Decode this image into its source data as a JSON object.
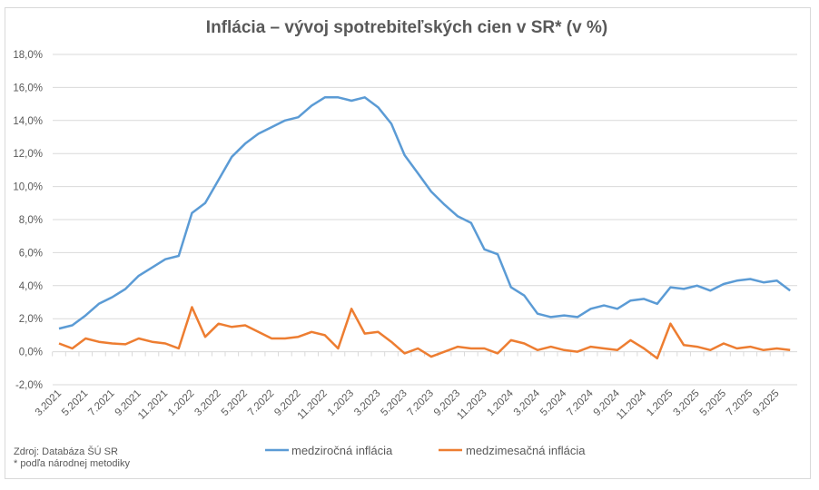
{
  "chart_data": {
    "type": "line",
    "title": "Inflácia –  vývoj spotrebiteľských cien v SR* (v %)",
    "xlabel": "",
    "ylabel": "",
    "ylim": [
      -2,
      18
    ],
    "yticks": [
      "-2,0%",
      "0,0%",
      "2,0%",
      "4,0%",
      "6,0%",
      "8,0%",
      "10,0%",
      "12,0%",
      "14,0%",
      "16,0%",
      "18,0%"
    ],
    "grid": true,
    "legend": "bottom",
    "xtick_labels": [
      "3.2021",
      "5.2021",
      "7.2021",
      "9.2021",
      "11.2021",
      "1.2022",
      "3.2022",
      "5.2022",
      "7.2022",
      "9.2022",
      "11.2022",
      "1.2023",
      "3.2023",
      "5.2023",
      "7.2023",
      "9.2023",
      "11.2023",
      "1.2024",
      "3.2024",
      "5.2024",
      "7.2024",
      "9.2024",
      "11.2024",
      "1.2025",
      "3.2025",
      "5.2025",
      "7.2025",
      "9.2025"
    ],
    "x": [
      "3.2021",
      "4.2021",
      "5.2021",
      "6.2021",
      "7.2021",
      "8.2021",
      "9.2021",
      "10.2021",
      "11.2021",
      "12.2021",
      "1.2022",
      "2.2022",
      "3.2022",
      "4.2022",
      "5.2022",
      "6.2022",
      "7.2022",
      "8.2022",
      "9.2022",
      "10.2022",
      "11.2022",
      "12.2022",
      "1.2023",
      "2.2023",
      "3.2023",
      "4.2023",
      "5.2023",
      "6.2023",
      "7.2023",
      "8.2023",
      "9.2023",
      "10.2023",
      "11.2023",
      "12.2023",
      "1.2024",
      "2.2024",
      "3.2024",
      "4.2024",
      "5.2024",
      "6.2024",
      "7.2024",
      "8.2024",
      "9.2024",
      "10.2024",
      "11.2024",
      "12.2024",
      "1.2025",
      "2.2025",
      "3.2025",
      "4.2025",
      "5.2025",
      "6.2025",
      "7.2025",
      "8.2025",
      "9.2025",
      "10.2025"
    ],
    "series": [
      {
        "name": "medziročná inflácia",
        "color": "#5b9bd5",
        "values": [
          1.4,
          1.6,
          2.2,
          2.9,
          3.3,
          3.8,
          4.6,
          5.1,
          5.6,
          5.8,
          8.4,
          9.0,
          10.4,
          11.8,
          12.6,
          13.2,
          13.6,
          14.0,
          14.2,
          14.9,
          15.4,
          15.4,
          15.2,
          15.4,
          14.8,
          13.8,
          11.9,
          10.8,
          9.7,
          8.9,
          8.2,
          7.8,
          6.2,
          5.9,
          3.9,
          3.4,
          2.3,
          2.1,
          2.2,
          2.1,
          2.6,
          2.8,
          2.6,
          3.1,
          3.2,
          2.9,
          3.9,
          3.8,
          4.0,
          3.7,
          4.1,
          4.3,
          4.4,
          4.2,
          4.3,
          3.7
        ]
      },
      {
        "name": "medzimesačná inflácia",
        "color": "#ed7d31",
        "values": [
          0.5,
          0.2,
          0.8,
          0.6,
          0.5,
          0.45,
          0.8,
          0.6,
          0.5,
          0.2,
          2.7,
          0.9,
          1.7,
          1.5,
          1.6,
          1.2,
          0.8,
          0.8,
          0.9,
          1.2,
          1.0,
          0.2,
          2.6,
          1.1,
          1.2,
          0.6,
          -0.1,
          0.2,
          -0.3,
          0.0,
          0.3,
          0.2,
          0.2,
          -0.1,
          0.7,
          0.5,
          0.1,
          0.3,
          0.1,
          0.0,
          0.3,
          0.2,
          0.1,
          0.7,
          0.2,
          -0.4,
          1.7,
          0.4,
          0.3,
          0.1,
          0.5,
          0.2,
          0.3,
          0.1,
          0.2,
          0.1
        ]
      }
    ]
  },
  "notes": {
    "source": "Zdroj: Databáza ŠÚ SR",
    "footnote": "* podľa národnej metodiky"
  }
}
